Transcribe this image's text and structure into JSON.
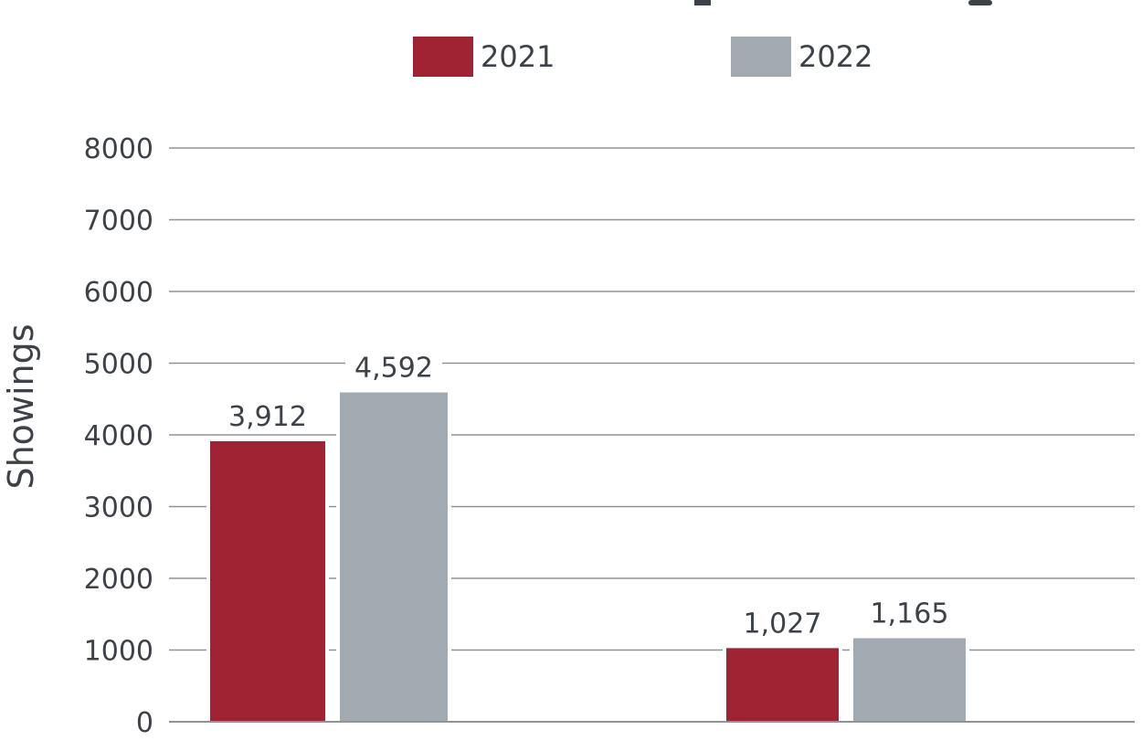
{
  "chart_data": {
    "type": "bar",
    "title": "",
    "xlabel": "",
    "ylabel": "Showings",
    "ylim": [
      0,
      8000
    ],
    "yticks": [
      0,
      1000,
      2000,
      3000,
      4000,
      5000,
      6000,
      7000,
      8000
    ],
    "ytick_labels": [
      "0",
      "1000",
      "2000",
      "3000",
      "4000",
      "5000",
      "6000",
      "7000",
      "8000"
    ],
    "grid": true,
    "legend_position": "top",
    "categories": [
      "",
      ""
    ],
    "series": [
      {
        "name": "2021",
        "color": "#a02333",
        "values": [
          3912,
          1027
        ],
        "labels": [
          "3,912",
          "1,027"
        ]
      },
      {
        "name": "2022",
        "color": "#a2aab1",
        "values": [
          4592,
          1165
        ],
        "labels": [
          "4,592",
          "1,165"
        ]
      }
    ]
  }
}
